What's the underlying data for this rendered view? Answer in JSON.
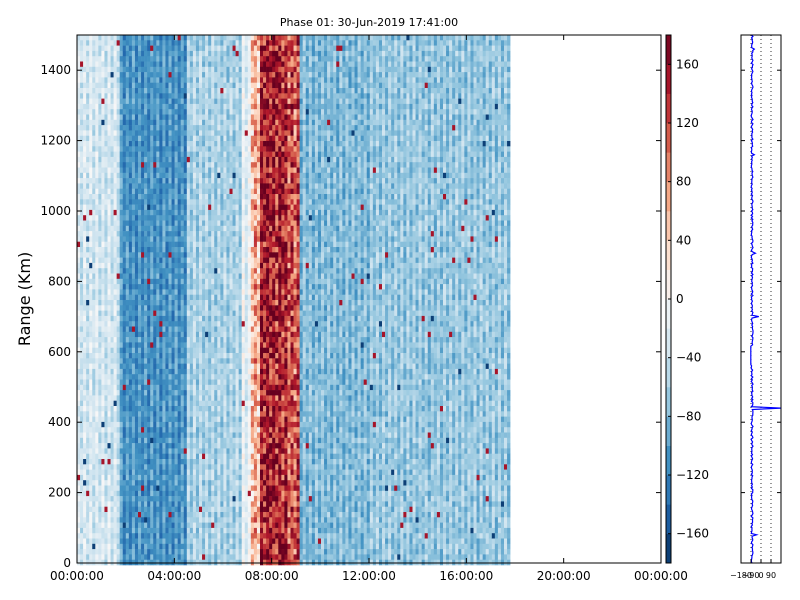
{
  "chart_data": [
    {
      "type": "heatmap",
      "title": "Phase 01: 30-Jun-2019 17:41:00",
      "xlabel": "",
      "ylabel": "Range (Km)",
      "xlim": [
        "00:00:00",
        "24:00:00"
      ],
      "ylim": [
        0,
        1500
      ],
      "x_ticks": [
        "00:00:00",
        "04:00:00",
        "08:00:00",
        "12:00:00",
        "16:00:00",
        "20:00:00",
        "00:00:00"
      ],
      "y_ticks": [
        0,
        200,
        400,
        600,
        800,
        1000,
        1200,
        1400
      ],
      "data_extent_hours": [
        0,
        17.68
      ],
      "colormap": "RdBu_r",
      "grid": false,
      "columns": [
        {
          "from_h": 0.0,
          "to_h": 1.7,
          "value": -35
        },
        {
          "from_h": 1.7,
          "to_h": 4.5,
          "value": -110
        },
        {
          "from_h": 4.5,
          "to_h": 6.7,
          "value": -60
        },
        {
          "from_h": 6.7,
          "to_h": 7.1,
          "value": -20
        },
        {
          "from_h": 7.1,
          "to_h": 7.5,
          "value": 60
        },
        {
          "from_h": 7.5,
          "to_h": 8.0,
          "value": 150
        },
        {
          "from_h": 8.0,
          "to_h": 8.6,
          "value": 140
        },
        {
          "from_h": 8.6,
          "to_h": 9.1,
          "value": 110
        },
        {
          "from_h": 9.1,
          "to_h": 12.0,
          "value": -80
        },
        {
          "from_h": 12.0,
          "to_h": 17.68,
          "value": -70
        }
      ]
    },
    {
      "type": "colorbar",
      "vlim": [
        -180,
        180
      ],
      "ticks": [
        -160,
        -120,
        -80,
        -40,
        0,
        40,
        80,
        120,
        160
      ],
      "tick_labels": [
        "−160",
        "−120",
        "−80",
        "−40",
        "0",
        "40",
        "80",
        "120",
        "160"
      ],
      "colormap": "RdBu_r"
    },
    {
      "type": "line",
      "x_ticks": [
        -180,
        -90,
        0,
        90
      ],
      "x_tick_labels": [
        "−180",
        "−90",
        "0",
        "90"
      ],
      "ylim": [
        0,
        1500
      ],
      "xlim": [
        -180,
        180
      ],
      "line_color": "#0000ff",
      "base_value": -80,
      "spikes": [
        {
          "y": 1460,
          "x": -60
        },
        {
          "y": 1160,
          "x": -60
        },
        {
          "y": 880,
          "x": -50
        },
        {
          "y": 700,
          "x": -20
        },
        {
          "y": 440,
          "x": 180
        },
        {
          "y": 80,
          "x": -40
        }
      ]
    }
  ]
}
